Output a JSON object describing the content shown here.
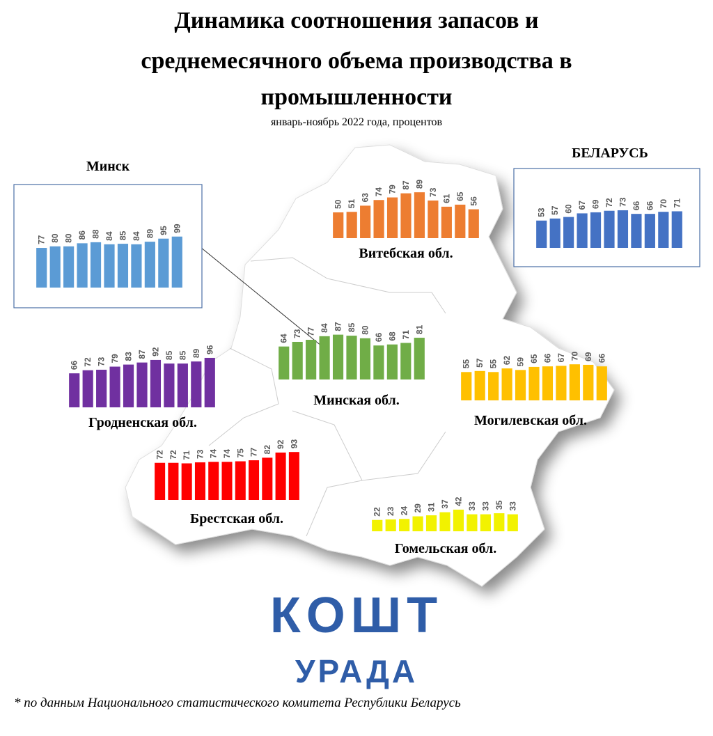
{
  "header": {
    "title_lines": [
      "Динамика соотношения запасов и",
      "среднемесячного объема производства в",
      "промышленности"
    ],
    "subtitle": "январь-ноябрь 2022 года, процентов"
  },
  "chart_data": [
    {
      "type": "bar",
      "title": "Минск",
      "color": "#5b9bd5",
      "frame": true,
      "values": [
        77,
        80,
        80,
        86,
        88,
        84,
        85,
        84,
        89,
        95,
        99
      ]
    },
    {
      "type": "bar",
      "title": "Витебская обл.",
      "color": "#ed7d31",
      "frame": false,
      "values": [
        50,
        51,
        63,
        74,
        79,
        87,
        89,
        73,
        61,
        65,
        56
      ]
    },
    {
      "type": "bar",
      "title": "БЕЛАРУСЬ",
      "color": "#4472c4",
      "frame": true,
      "values": [
        53,
        57,
        60,
        67,
        69,
        72,
        73,
        66,
        66,
        70,
        71
      ]
    },
    {
      "type": "bar",
      "title": "Гродненская обл.",
      "color": "#7030a0",
      "frame": false,
      "values": [
        66,
        72,
        73,
        79,
        83,
        87,
        92,
        85,
        85,
        89,
        96
      ]
    },
    {
      "type": "bar",
      "title": "Минская обл.",
      "color": "#70ad47",
      "frame": false,
      "values": [
        64,
        73,
        77,
        84,
        87,
        85,
        80,
        66,
        68,
        71,
        81
      ]
    },
    {
      "type": "bar",
      "title": "Могилевская обл.",
      "color": "#ffc000",
      "frame": false,
      "values": [
        55,
        57,
        55,
        62,
        59,
        65,
        66,
        67,
        70,
        69,
        66
      ]
    },
    {
      "type": "bar",
      "title": "Брестская обл.",
      "color": "#ff0000",
      "frame": false,
      "values": [
        72,
        72,
        71,
        73,
        74,
        74,
        75,
        77,
        82,
        92,
        93
      ]
    },
    {
      "type": "bar",
      "title": "Гомельская обл.",
      "color": "#f2f200",
      "frame": false,
      "values": [
        22,
        23,
        24,
        29,
        31,
        37,
        42,
        33,
        33,
        35,
        33
      ]
    }
  ],
  "logo": {
    "word": "КОШТ",
    "sub": "УРАДА"
  },
  "footnote": "* по данным Национального статистического комитета  Республики Беларусь"
}
